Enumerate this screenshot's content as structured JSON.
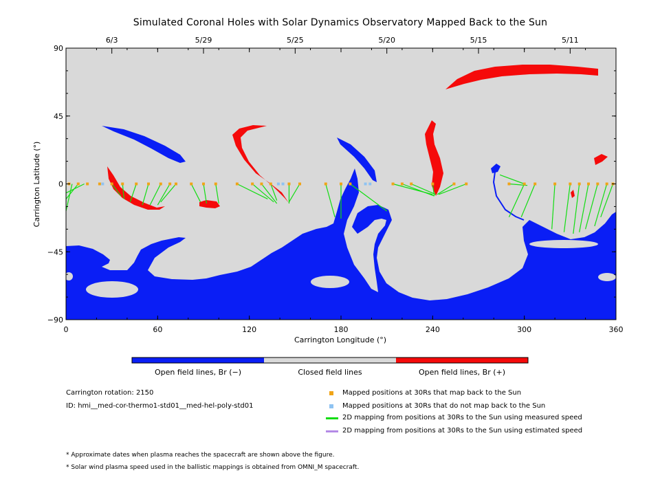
{
  "chart_data": {
    "type": "scatter",
    "title": "Simulated Coronal Holes with Solar Dynamics Observatory Mapped Back to the Sun",
    "xlabel": "Carrington Longitude (°)",
    "ylabel": "Carrington Latitude (°)",
    "xlim": [
      0,
      360
    ],
    "ylim": [
      -90,
      90
    ],
    "x_ticks": [
      "0",
      "60",
      "120",
      "180",
      "240",
      "300",
      "360"
    ],
    "y_ticks": [
      "90",
      "45",
      "0",
      "−45",
      "−90"
    ],
    "top_axis_dates": [
      {
        "label": "6/3",
        "lon": 30
      },
      {
        "label": "5/29",
        "lon": 90
      },
      {
        "label": "5/25",
        "lon": 150
      },
      {
        "label": "5/20",
        "lon": 210
      },
      {
        "label": "5/15",
        "lon": 270
      },
      {
        "label": "5/11",
        "lon": 330
      }
    ],
    "colorbar": [
      {
        "label": "Open field lines, Br (−)",
        "color": "#0a1ef5"
      },
      {
        "label": "Closed field lines",
        "color": "#d9d9d9"
      },
      {
        "label": "Open field lines, Br (+)",
        "color": "#f50a0a"
      }
    ],
    "series": [
      {
        "name": "Mapped positions at 30Rs that map back to the Sun",
        "color": "#f0a418",
        "x": [
          2,
          8,
          14,
          22,
          30,
          37,
          46,
          54,
          62,
          68,
          72,
          82,
          90,
          98,
          112,
          122,
          128,
          134,
          146,
          153,
          170,
          180,
          186,
          214,
          220,
          226,
          240,
          254,
          262,
          290,
          300,
          307,
          320,
          330,
          336,
          342,
          348,
          354,
          358
        ]
      },
      {
        "name": "Mapped positions at 30Rs that do not map back to the Sun",
        "color": "#8fc3f2",
        "x": [
          24,
          139,
          142,
          196,
          199
        ]
      },
      {
        "name": "2D mapping from positions at 30Rs to the Sun using measured speed",
        "color": "#11dd11"
      },
      {
        "name": "2D mapping from positions at 30Rs to the Sun using estimated speed",
        "color": "#b48ae6"
      }
    ]
  },
  "info": {
    "rotation": "Carrington rotation: 2150",
    "id": "ID: hmi__med-cor-thermo1-std01__med-hel-poly-std01"
  },
  "notes": [
    "* Approximate dates when plasma reaches the spacecraft are shown above the figure.",
    "* Solar wind plasma speed used in the ballistic mappings is obtained from OMNI_M spacecraft."
  ]
}
